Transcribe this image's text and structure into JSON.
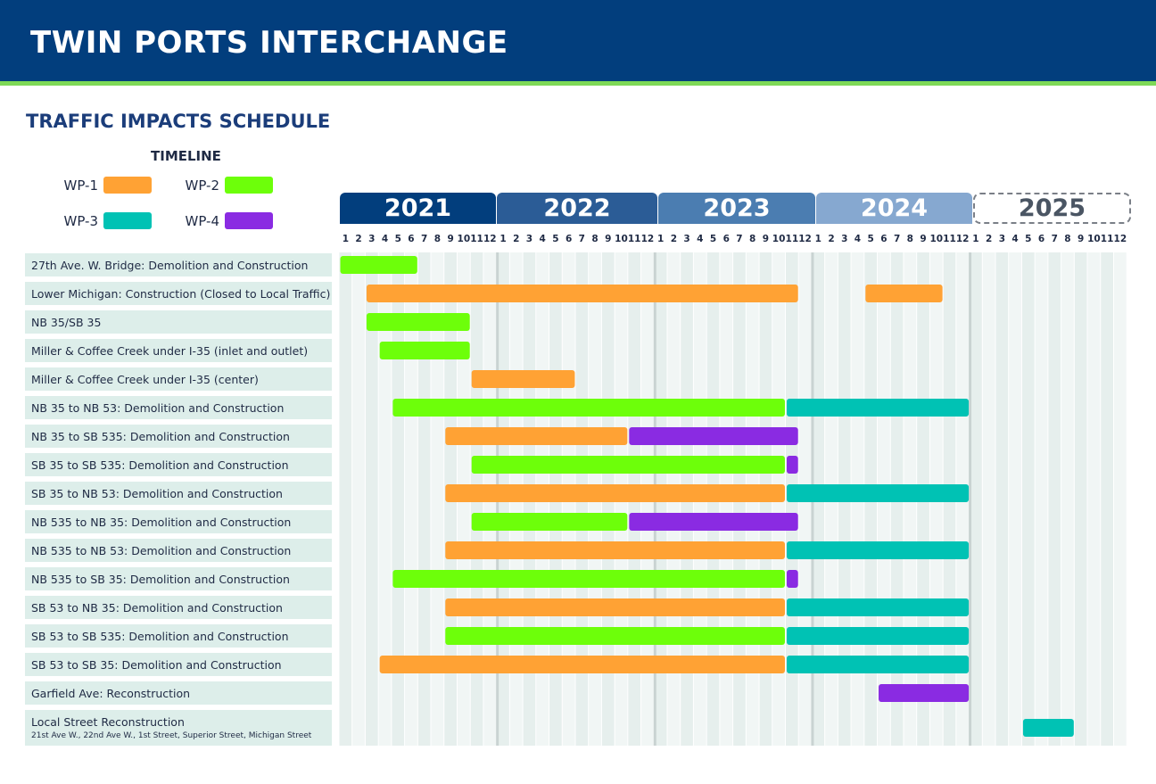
{
  "header": {
    "title": "TWIN PORTS INTERCHANGE"
  },
  "subtitle": "TRAFFIC IMPACTS SCHEDULE",
  "legend": {
    "title": "TIMELINE",
    "items": [
      {
        "label": "WP-1",
        "color": "#ffa234"
      },
      {
        "label": "WP-2",
        "color": "#6dff0a"
      },
      {
        "label": "WP-3",
        "color": "#00c2b4"
      },
      {
        "label": "WP-4",
        "color": "#8a2be2"
      }
    ]
  },
  "chart_data": {
    "type": "gantt",
    "years": [
      {
        "label": "2021",
        "color": "#023e7d"
      },
      {
        "label": "2022",
        "color": "#2b5c96"
      },
      {
        "label": "2023",
        "color": "#4b7db1"
      },
      {
        "label": "2024",
        "color": "#86a8d0"
      },
      {
        "label": "2025",
        "color": "#ffffff"
      }
    ],
    "months": [
      "1",
      "2",
      "3",
      "4",
      "5",
      "6",
      "7",
      "8",
      "9",
      "10",
      "11",
      "12"
    ],
    "x_unit": "month index from Jan 2021 (1 = Jan 2021)",
    "rows": [
      {
        "label": "27th Ave. W. Bridge: Demolition and Construction",
        "bars": [
          {
            "wp": "WP-2",
            "start": 1,
            "end": 6
          }
        ]
      },
      {
        "label": "Lower Michigan: Construction (Closed to Local Traffic)",
        "bars": [
          {
            "wp": "WP-1",
            "start": 3,
            "end": 35
          },
          {
            "wp": "WP-1",
            "start": 41,
            "end": 46
          }
        ]
      },
      {
        "label": "NB 35/SB 35",
        "bars": [
          {
            "wp": "WP-2",
            "start": 3,
            "end": 10
          }
        ]
      },
      {
        "label": "Miller & Coffee Creek under I-35 (inlet and outlet)",
        "bars": [
          {
            "wp": "WP-2",
            "start": 4,
            "end": 10
          }
        ]
      },
      {
        "label": "Miller & Coffee Creek under I-35 (center)",
        "bars": [
          {
            "wp": "WP-1",
            "start": 11,
            "end": 18
          }
        ]
      },
      {
        "label": "NB 35 to NB 53: Demolition and Construction",
        "bars": [
          {
            "wp": "WP-2",
            "start": 5,
            "end": 34
          },
          {
            "wp": "WP-3",
            "start": 35,
            "end": 48
          }
        ]
      },
      {
        "label": "NB 35 to SB 535: Demolition and Construction",
        "bars": [
          {
            "wp": "WP-1",
            "start": 9,
            "end": 22
          },
          {
            "wp": "WP-4",
            "start": 23,
            "end": 35
          }
        ]
      },
      {
        "label": "SB 35 to SB 535: Demolition and Construction",
        "bars": [
          {
            "wp": "WP-2",
            "start": 11,
            "end": 34
          },
          {
            "wp": "WP-4",
            "start": 35,
            "end": 35
          }
        ]
      },
      {
        "label": "SB 35 to NB 53: Demolition and Construction",
        "bars": [
          {
            "wp": "WP-1",
            "start": 9,
            "end": 34
          },
          {
            "wp": "WP-3",
            "start": 35,
            "end": 48
          }
        ]
      },
      {
        "label": "NB 535 to NB 35: Demolition and Construction",
        "bars": [
          {
            "wp": "WP-2",
            "start": 11,
            "end": 22
          },
          {
            "wp": "WP-4",
            "start": 23,
            "end": 35
          }
        ]
      },
      {
        "label": "NB 535 to NB 53: Demolition and Construction",
        "bars": [
          {
            "wp": "WP-1",
            "start": 9,
            "end": 34
          },
          {
            "wp": "WP-3",
            "start": 35,
            "end": 48
          }
        ]
      },
      {
        "label": "NB 535 to SB 35: Demolition and Construction",
        "bars": [
          {
            "wp": "WP-2",
            "start": 5,
            "end": 34
          },
          {
            "wp": "WP-4",
            "start": 35,
            "end": 35
          }
        ]
      },
      {
        "label": "SB 53 to NB 35: Demolition and Construction",
        "bars": [
          {
            "wp": "WP-1",
            "start": 9,
            "end": 34
          },
          {
            "wp": "WP-3",
            "start": 35,
            "end": 48
          }
        ]
      },
      {
        "label": "SB 53 to SB 535: Demolition and Construction",
        "bars": [
          {
            "wp": "WP-2",
            "start": 9,
            "end": 34
          },
          {
            "wp": "WP-3",
            "start": 35,
            "end": 48
          }
        ]
      },
      {
        "label": "SB 53 to SB 35: Demolition and Construction",
        "bars": [
          {
            "wp": "WP-1",
            "start": 4,
            "end": 34
          },
          {
            "wp": "WP-3",
            "start": 35,
            "end": 48
          }
        ]
      },
      {
        "label": "Garfield Ave: Reconstruction",
        "bars": [
          {
            "wp": "WP-4",
            "start": 42,
            "end": 48
          }
        ]
      },
      {
        "label": "Local Street Reconstruction",
        "sublabel": "21st Ave W., 22nd Ave W., 1st Street, Superior Street, Michigan Street",
        "bars": [
          {
            "wp": "WP-3",
            "start": 53,
            "end": 56
          }
        ]
      }
    ]
  }
}
